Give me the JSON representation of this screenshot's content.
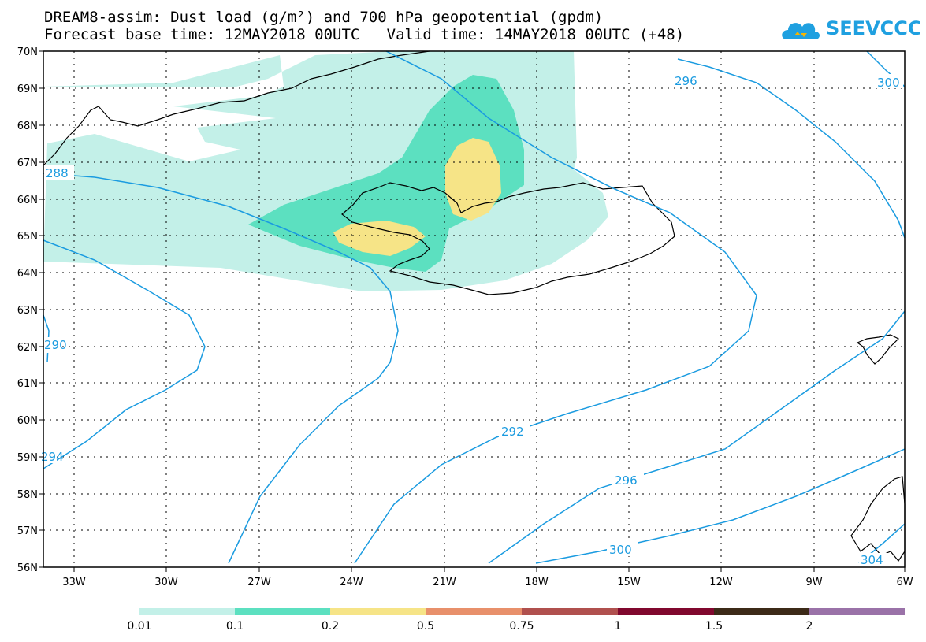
{
  "title": {
    "line1": "DREAM8-assim: Dust load (g/m²) and 700 hPa geopotential (gpdm)",
    "line2": "Forecast base time: 12MAY2018 00UTC   Valid time: 14MAY2018 00UTC (+48)"
  },
  "logo": {
    "text": "SEEVCCC",
    "color": "#1fa0e0"
  },
  "map": {
    "lat_labels": [
      "70N",
      "69N",
      "68N",
      "67N",
      "66N",
      "65N",
      "64N",
      "63N",
      "62N",
      "61N",
      "60N",
      "59N",
      "58N",
      "57N",
      "56N"
    ],
    "lon_labels": [
      "33W",
      "30W",
      "27W",
      "24W",
      "21W",
      "18W",
      "15W",
      "12W",
      "9W",
      "6W"
    ],
    "contour_labels": [
      "296",
      "300",
      "288",
      "290",
      "292",
      "296",
      "300",
      "304",
      "294"
    ],
    "contour_color": "#1a9be0"
  },
  "colorbar": {
    "colors": [
      "#c3f0e8",
      "#5ce0c0",
      "#f6e487",
      "#e8906b",
      "#b0504e",
      "#80082e",
      "#3c2a18",
      "#9a72a8"
    ],
    "labels": [
      "0.01",
      "0.1",
      "0.2",
      "0.5",
      "0.75",
      "1",
      "1.5",
      "2"
    ]
  }
}
